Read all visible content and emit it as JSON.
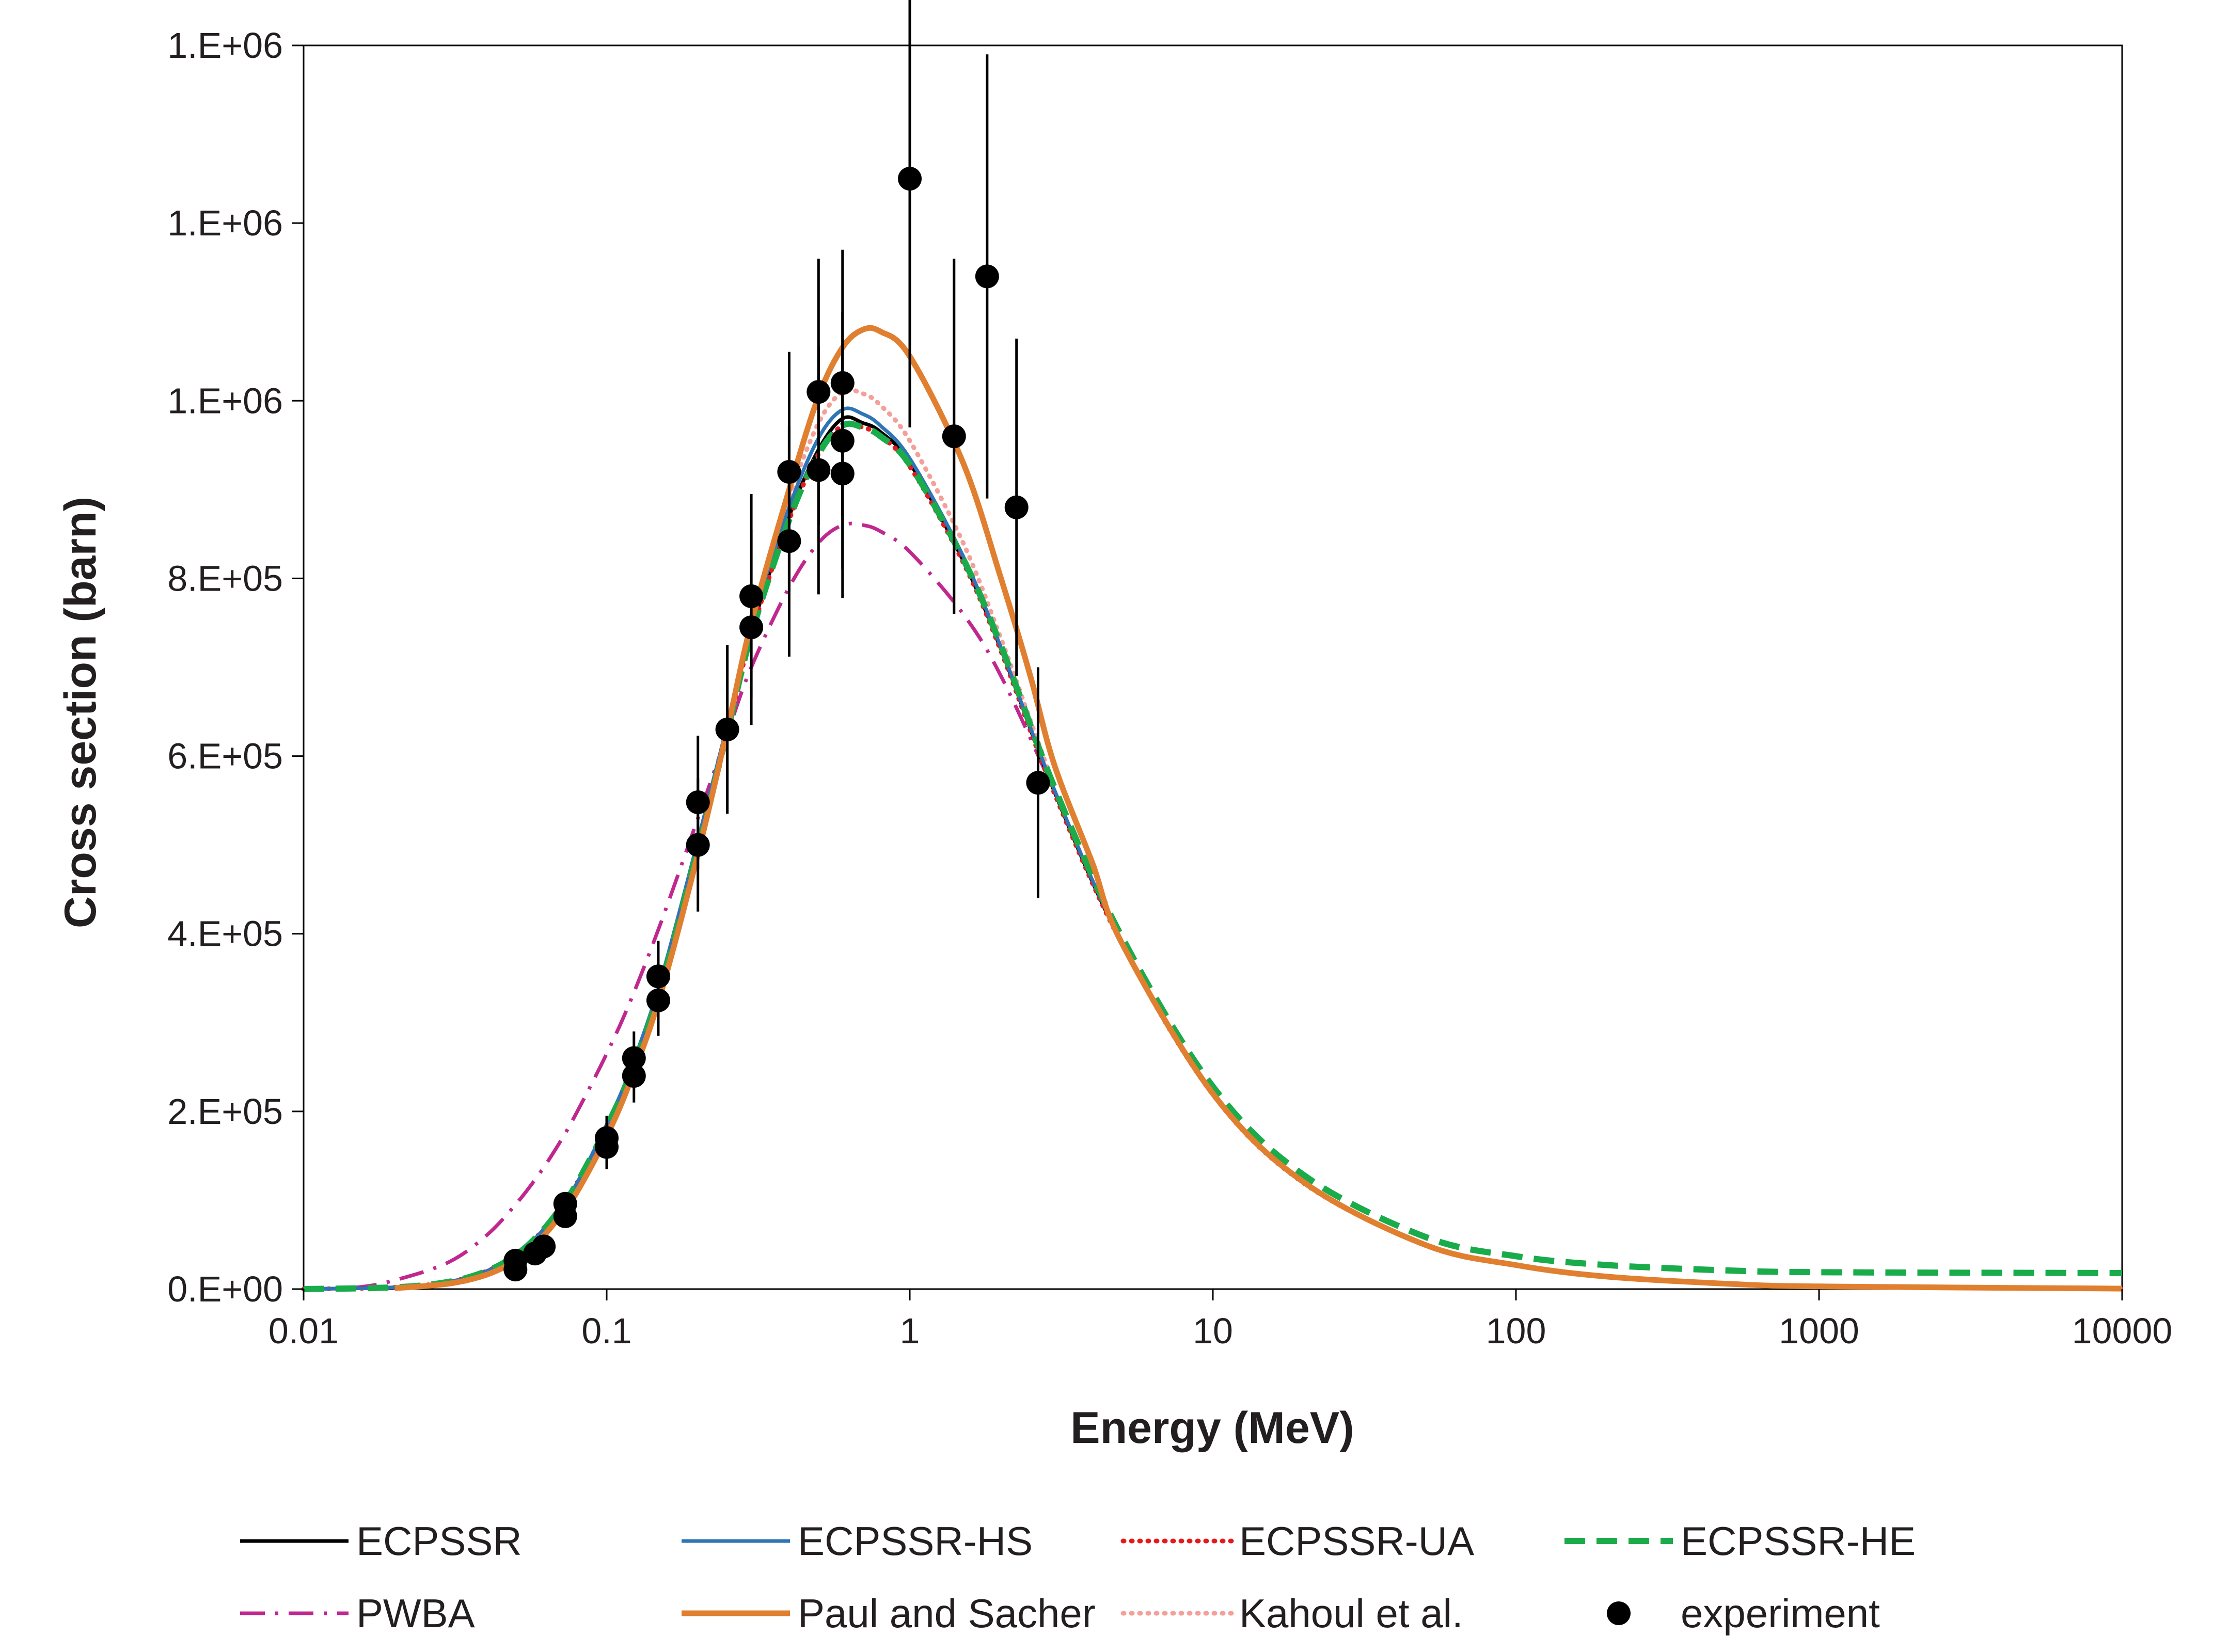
{
  "chart_data": {
    "type": "line",
    "title": "",
    "xlabel": "Energy (MeV)",
    "ylabel": "Cross section (barn)",
    "xscale": "log",
    "xlim": [
      0.01,
      10000
    ],
    "ylim": [
      0,
      1400000
    ],
    "x_ticks": [
      {
        "value": 0.01,
        "label": "0.01"
      },
      {
        "value": 0.1,
        "label": "0.1"
      },
      {
        "value": 1,
        "label": "1"
      },
      {
        "value": 10,
        "label": "10"
      },
      {
        "value": 100,
        "label": "100"
      },
      {
        "value": 1000,
        "label": "1000"
      },
      {
        "value": 10000,
        "label": "10000"
      }
    ],
    "y_ticks": [
      {
        "value": 0,
        "label": "0.E+00"
      },
      {
        "value": 200000,
        "label": "2.E+05"
      },
      {
        "value": 400000,
        "label": "4.E+05"
      },
      {
        "value": 600000,
        "label": "6.E+05"
      },
      {
        "value": 800000,
        "label": "8.E+05"
      },
      {
        "value": 1000000,
        "label": "1.E+06"
      },
      {
        "value": 1200000,
        "label": "1.E+06"
      },
      {
        "value": 1400000,
        "label": "1.E+06"
      }
    ],
    "grid": false,
    "legend_position": "bottom",
    "series": [
      {
        "name": "ECPSSR",
        "color": "#000000",
        "dash": "solid",
        "x": [
          0.01,
          0.02,
          0.03,
          0.04,
          0.05,
          0.06,
          0.07,
          0.08,
          0.1,
          0.12,
          0.15,
          0.2,
          0.25,
          0.3,
          0.4,
          0.5,
          0.6,
          0.7,
          0.8,
          1,
          1.5,
          2,
          3,
          5,
          10,
          20,
          50,
          100,
          200,
          500,
          1000,
          10000
        ],
        "y": [
          0,
          2000,
          8000,
          20000,
          38000,
          62000,
          90000,
          120000,
          185000,
          245000,
          340000,
          500000,
          630000,
          740000,
          870000,
          945000,
          980000,
          975000,
          965000,
          930000,
          820000,
          720000,
          560000,
          390000,
          220000,
          120000,
          50000,
          27000,
          14000,
          6000,
          3000,
          500
        ]
      },
      {
        "name": "ECPSSR-HS",
        "color": "#2e75b6",
        "dash": "solid",
        "x": [
          0.01,
          0.02,
          0.03,
          0.04,
          0.05,
          0.06,
          0.07,
          0.08,
          0.1,
          0.12,
          0.15,
          0.2,
          0.25,
          0.3,
          0.4,
          0.5,
          0.6,
          0.7,
          0.8,
          1,
          1.5,
          2,
          3,
          5,
          10,
          20,
          50,
          100,
          200,
          500,
          1000,
          10000
        ],
        "y": [
          0,
          2000,
          8000,
          20000,
          38000,
          62000,
          90000,
          120000,
          185000,
          248000,
          345000,
          505000,
          635000,
          748000,
          880000,
          958000,
          990000,
          985000,
          972000,
          935000,
          825000,
          722000,
          562000,
          392000,
          222000,
          121000,
          51000,
          27500,
          14200,
          6100,
          3100,
          500
        ]
      },
      {
        "name": "ECPSSR-UA",
        "color": "#e41a1c",
        "dash": "dotted",
        "x": [
          0.01,
          0.02,
          0.03,
          0.04,
          0.05,
          0.06,
          0.07,
          0.08,
          0.1,
          0.12,
          0.15,
          0.2,
          0.25,
          0.3,
          0.4,
          0.5,
          0.6,
          0.7,
          0.8,
          1,
          1.5,
          2,
          3,
          5,
          10,
          20,
          50,
          100,
          200,
          500,
          1000,
          10000
        ],
        "y": [
          0,
          2000,
          8000,
          20000,
          38000,
          62000,
          90000,
          120000,
          183000,
          243000,
          338000,
          497000,
          627000,
          737000,
          866000,
          940000,
          972000,
          970000,
          960000,
          926000,
          818000,
          718000,
          558000,
          389000,
          219000,
          119000,
          50000,
          27000,
          14000,
          6000,
          3000,
          500
        ]
      },
      {
        "name": "ECPSSR-HE",
        "color": "#1aab4b",
        "dash": "dashed",
        "x": [
          0.01,
          0.02,
          0.03,
          0.04,
          0.05,
          0.06,
          0.07,
          0.08,
          0.1,
          0.12,
          0.15,
          0.2,
          0.25,
          0.3,
          0.4,
          0.5,
          0.6,
          0.7,
          0.8,
          1,
          1.5,
          2,
          3,
          5,
          10,
          20,
          50,
          100,
          200,
          500,
          1000,
          10000
        ],
        "y": [
          0,
          2000,
          8000,
          20000,
          38000,
          62000,
          90000,
          120000,
          183000,
          243000,
          338000,
          497000,
          627000,
          737000,
          866000,
          940000,
          972000,
          970000,
          960000,
          928000,
          822000,
          724000,
          565000,
          397000,
          228000,
          128000,
          59000,
          37000,
          27000,
          21000,
          19000,
          18000
        ]
      },
      {
        "name": "PWBA",
        "color": "#c0288f",
        "dash": "dashdot",
        "x": [
          0.01,
          0.015,
          0.02,
          0.03,
          0.04,
          0.05,
          0.06,
          0.07,
          0.08,
          0.1,
          0.12,
          0.15,
          0.2,
          0.25,
          0.3,
          0.4,
          0.5,
          0.6,
          0.7,
          0.8,
          1,
          1.5,
          2,
          3,
          5,
          10,
          20,
          50,
          100,
          200,
          500,
          1000,
          10000
        ],
        "y": [
          0,
          2000,
          10000,
          30000,
          60000,
          95000,
          130000,
          165000,
          200000,
          265000,
          325000,
          410000,
          530000,
          625000,
          700000,
          790000,
          840000,
          860000,
          860000,
          853000,
          830000,
          760000,
          690000,
          560000,
          390000,
          220000,
          120000,
          50000,
          27000,
          14000,
          6000,
          3000,
          500
        ]
      },
      {
        "name": "Paul and Sacher",
        "color": "#e07f2f",
        "dash": "solid",
        "x": [
          0.02,
          0.03,
          0.04,
          0.05,
          0.06,
          0.07,
          0.08,
          0.1,
          0.12,
          0.15,
          0.2,
          0.25,
          0.3,
          0.4,
          0.5,
          0.6,
          0.7,
          0.8,
          1,
          1.5,
          2,
          2.5,
          3,
          4,
          5,
          10,
          20,
          50,
          100,
          200,
          500,
          1000,
          10000
        ],
        "y": [
          1000,
          6000,
          16000,
          32000,
          55000,
          82000,
          110000,
          172000,
          235000,
          330000,
          490000,
          630000,
          750000,
          900000,
          1005000,
          1060000,
          1080000,
          1078000,
          1050000,
          930000,
          800000,
          690000,
          590000,
          480000,
          390000,
          220000,
          120000,
          50000,
          27000,
          14000,
          6000,
          3000,
          500
        ]
      },
      {
        "name": "Kahoul et al.",
        "color": "#f4a09a",
        "dash": "dotted",
        "x": [
          0.03,
          0.04,
          0.05,
          0.06,
          0.07,
          0.08,
          0.1,
          0.12,
          0.15,
          0.2,
          0.25,
          0.3,
          0.4,
          0.5,
          0.6,
          0.7,
          0.8,
          1,
          1.5,
          2,
          2.5,
          3
        ],
        "y": [
          6000,
          18000,
          35000,
          58000,
          86000,
          115000,
          178000,
          240000,
          335000,
          495000,
          630000,
          745000,
          890000,
          975000,
          1010000,
          1008000,
          995000,
          955000,
          840000,
          732000,
          640000,
          565000
        ]
      }
    ],
    "experiment": {
      "name": "experiment",
      "color": "#000000",
      "points": [
        {
          "x": 0.05,
          "y": 22000,
          "err": 0
        },
        {
          "x": 0.05,
          "y": 32000,
          "err": 0
        },
        {
          "x": 0.058,
          "y": 40000,
          "err": 0
        },
        {
          "x": 0.062,
          "y": 48000,
          "err": 0
        },
        {
          "x": 0.073,
          "y": 82000,
          "err": 0
        },
        {
          "x": 0.073,
          "y": 96000,
          "err": 0
        },
        {
          "x": 0.1,
          "y": 160000,
          "err": 25000
        },
        {
          "x": 0.1,
          "y": 170000,
          "err": 25000
        },
        {
          "x": 0.123,
          "y": 240000,
          "err": 30000
        },
        {
          "x": 0.123,
          "y": 260000,
          "err": 30000
        },
        {
          "x": 0.148,
          "y": 325000,
          "err": 40000
        },
        {
          "x": 0.148,
          "y": 352000,
          "err": 40000
        },
        {
          "x": 0.2,
          "y": 500000,
          "err": 75000
        },
        {
          "x": 0.2,
          "y": 548000,
          "err": 75000
        },
        {
          "x": 0.25,
          "y": 630000,
          "err": 95000
        },
        {
          "x": 0.3,
          "y": 745000,
          "err": 110000
        },
        {
          "x": 0.3,
          "y": 780000,
          "err": 115000
        },
        {
          "x": 0.4,
          "y": 842000,
          "err": 130000
        },
        {
          "x": 0.4,
          "y": 920000,
          "err": 135000
        },
        {
          "x": 0.5,
          "y": 922000,
          "err": 140000
        },
        {
          "x": 0.5,
          "y": 1010000,
          "err": 150000
        },
        {
          "x": 0.6,
          "y": 918000,
          "err": 140000
        },
        {
          "x": 0.6,
          "y": 955000,
          "err": 145000
        },
        {
          "x": 0.6,
          "y": 1020000,
          "err": 150000
        },
        {
          "x": 1.0,
          "y": 1250000,
          "err": 280000
        },
        {
          "x": 1.4,
          "y": 960000,
          "err": 200000
        },
        {
          "x": 1.8,
          "y": 1140000,
          "err": 250000
        },
        {
          "x": 2.25,
          "y": 880000,
          "err": 190000
        },
        {
          "x": 2.65,
          "y": 570000,
          "err": 130000
        }
      ]
    }
  }
}
